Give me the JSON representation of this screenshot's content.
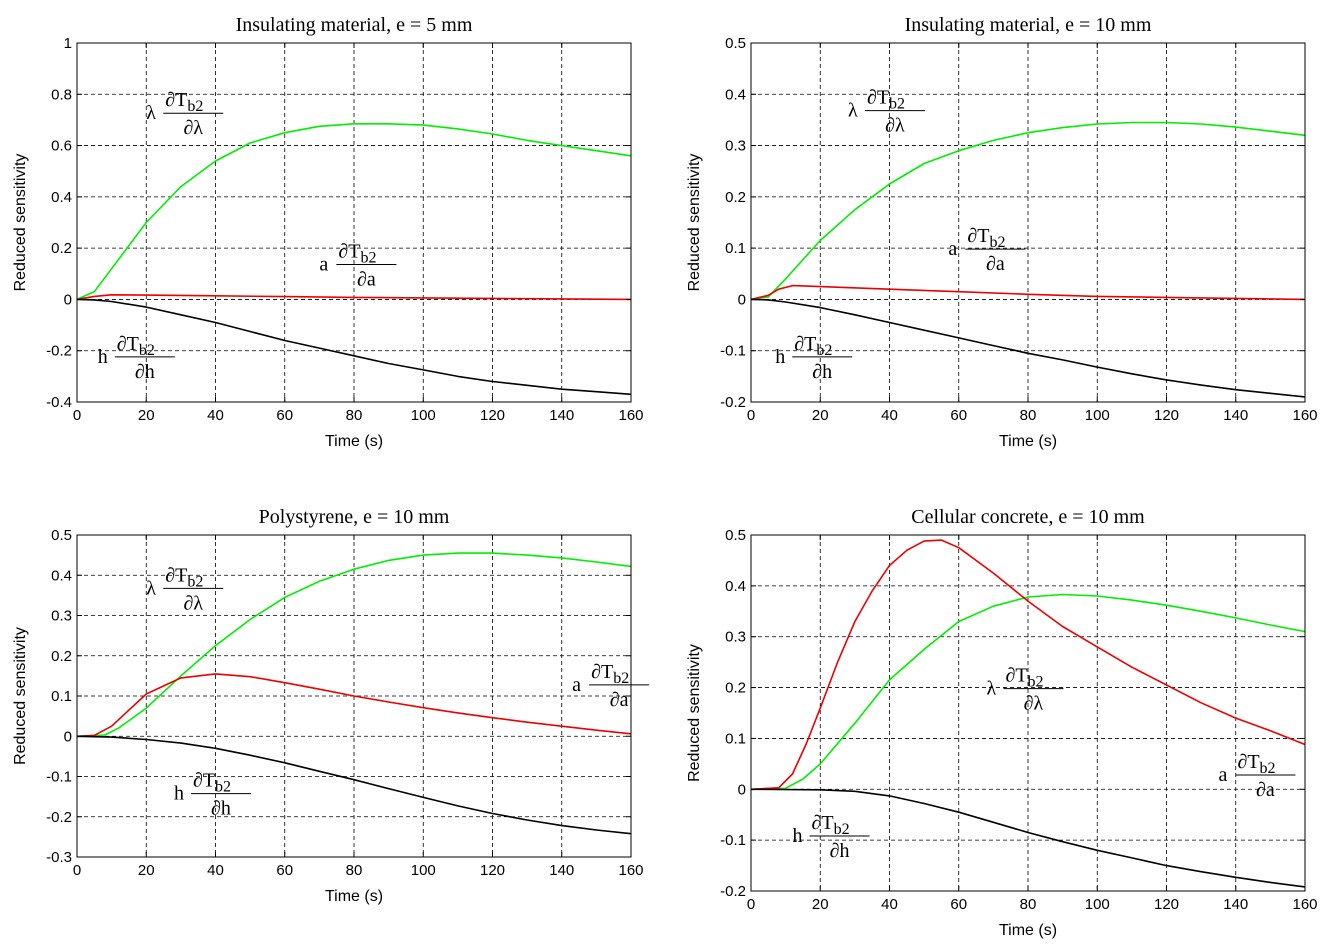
{
  "chart_data": [
    {
      "type": "line",
      "title": "Insulating material, e = 5 mm",
      "xlabel": "Time (s)",
      "ylabel": "Reduced sensitivity",
      "xlim": [
        0,
        160
      ],
      "ylim": [
        -0.4,
        1
      ],
      "xticks": [
        0,
        20,
        40,
        60,
        80,
        100,
        120,
        140,
        160
      ],
      "xtick_labels": [
        "0",
        "20",
        "40",
        "60",
        "80",
        "100",
        "120",
        "140",
        "160"
      ],
      "yticks": [
        -0.4,
        -0.2,
        0,
        0.2,
        0.4,
        0.6,
        0.8,
        1
      ],
      "ytick_labels": [
        "-0.4",
        "-0.2",
        "0",
        "0.2",
        "0.4",
        "0.6",
        "0.8",
        "1"
      ],
      "grid": true,
      "series": [
        {
          "color": "#00ee00",
          "x": [
            0,
            5,
            10,
            20,
            30,
            40,
            50,
            60,
            70,
            80,
            90,
            100,
            110,
            120,
            130,
            140,
            150,
            160
          ],
          "y": [
            0,
            0.03,
            0.12,
            0.3,
            0.44,
            0.54,
            0.61,
            0.65,
            0.675,
            0.685,
            0.685,
            0.68,
            0.665,
            0.645,
            0.62,
            0.6,
            0.58,
            0.56
          ]
        },
        {
          "color": "#ee0000",
          "x": [
            0,
            5,
            10,
            20,
            40,
            60,
            80,
            100,
            120,
            140,
            160
          ],
          "y": [
            0,
            0.012,
            0.018,
            0.017,
            0.014,
            0.011,
            0.008,
            0.006,
            0.004,
            0.002,
            0
          ]
        },
        {
          "color": "#000000",
          "x": [
            0,
            5,
            10,
            20,
            30,
            40,
            50,
            60,
            70,
            80,
            90,
            100,
            110,
            120,
            130,
            140,
            150,
            160
          ],
          "y": [
            0,
            -0.002,
            -0.008,
            -0.03,
            -0.06,
            -0.09,
            -0.125,
            -0.16,
            -0.19,
            -0.22,
            -0.25,
            -0.275,
            -0.3,
            -0.32,
            -0.335,
            -0.35,
            -0.36,
            -0.37
          ]
        }
      ],
      "annotations": [
        {
          "coef": "λ",
          "num": "∂T",
          "sub": "b2",
          "den": "∂λ",
          "x": 20,
          "y": 0.73
        },
        {
          "coef": "a",
          "num": "∂T",
          "sub": "b2",
          "den": "∂a",
          "x": 70,
          "y": 0.14
        },
        {
          "coef": "h",
          "num": "∂T",
          "sub": "b2",
          "den": "∂h",
          "x": 6,
          "y": -0.22
        }
      ]
    },
    {
      "type": "line",
      "title": "Insulating material, e = 10 mm",
      "xlabel": "Time (s)",
      "ylabel": "Reduced sensitivity",
      "xlim": [
        0,
        160
      ],
      "ylim": [
        -0.2,
        0.5
      ],
      "xticks": [
        0,
        20,
        40,
        60,
        80,
        100,
        120,
        140,
        160
      ],
      "xtick_labels": [
        "0",
        "20",
        "40",
        "60",
        "80",
        "100",
        "120",
        "140",
        "160"
      ],
      "yticks": [
        -0.2,
        -0.1,
        0,
        0.1,
        0.2,
        0.3,
        0.4,
        0.5
      ],
      "ytick_labels": [
        "-0.2",
        "-0.1",
        "0",
        "0.1",
        "0.2",
        "0.3",
        "0.4",
        "0.5"
      ],
      "grid": true,
      "series": [
        {
          "color": "#00ee00",
          "x": [
            0,
            5,
            10,
            20,
            30,
            40,
            50,
            60,
            70,
            80,
            90,
            100,
            110,
            120,
            130,
            140,
            150,
            160
          ],
          "y": [
            0,
            0.005,
            0.04,
            0.115,
            0.175,
            0.225,
            0.265,
            0.29,
            0.31,
            0.325,
            0.335,
            0.342,
            0.345,
            0.345,
            0.342,
            0.336,
            0.328,
            0.32
          ]
        },
        {
          "color": "#ee0000",
          "x": [
            0,
            5,
            8,
            12,
            20,
            40,
            60,
            80,
            100,
            120,
            140,
            160
          ],
          "y": [
            0,
            0.008,
            0.02,
            0.027,
            0.025,
            0.02,
            0.015,
            0.01,
            0.006,
            0.004,
            0.002,
            0
          ]
        },
        {
          "color": "#000000",
          "x": [
            0,
            5,
            10,
            20,
            30,
            40,
            50,
            60,
            70,
            80,
            90,
            100,
            110,
            120,
            130,
            140,
            150,
            160
          ],
          "y": [
            0,
            -0.001,
            -0.005,
            -0.016,
            -0.03,
            -0.045,
            -0.06,
            -0.075,
            -0.09,
            -0.105,
            -0.118,
            -0.132,
            -0.145,
            -0.157,
            -0.167,
            -0.176,
            -0.183,
            -0.19
          ]
        }
      ],
      "annotations": [
        {
          "coef": "λ",
          "num": "∂T",
          "sub": "b2",
          "den": "∂λ",
          "x": 28,
          "y": 0.37
        },
        {
          "coef": "a",
          "num": "∂T",
          "sub": "b2",
          "den": "∂a",
          "x": 57,
          "y": 0.1
        },
        {
          "coef": "h",
          "num": "∂T",
          "sub": "b2",
          "den": "∂h",
          "x": 7,
          "y": -0.11
        }
      ]
    },
    {
      "type": "line",
      "title": "Polystyrene, e = 10 mm",
      "xlabel": "Time (s)",
      "ylabel": "Reduced sensitivity",
      "xlim": [
        0,
        160
      ],
      "ylim": [
        -0.3,
        0.5
      ],
      "xticks": [
        0,
        20,
        40,
        60,
        80,
        100,
        120,
        140,
        160
      ],
      "xtick_labels": [
        "0",
        "20",
        "40",
        "60",
        "80",
        "100",
        "120",
        "140",
        "160"
      ],
      "yticks": [
        -0.3,
        -0.2,
        -0.1,
        0,
        0.1,
        0.2,
        0.3,
        0.4,
        0.5
      ],
      "ytick_labels": [
        "-0.3",
        "-0.2",
        "-0.1",
        "0",
        "0.1",
        "0.2",
        "0.3",
        "0.4",
        "0.5"
      ],
      "grid": true,
      "series": [
        {
          "color": "#00ee00",
          "x": [
            0,
            8,
            12,
            20,
            30,
            40,
            50,
            60,
            70,
            80,
            90,
            100,
            110,
            120,
            130,
            140,
            150,
            160
          ],
          "y": [
            0,
            0.003,
            0.02,
            0.07,
            0.15,
            0.225,
            0.29,
            0.345,
            0.385,
            0.415,
            0.437,
            0.45,
            0.455,
            0.455,
            0.45,
            0.443,
            0.433,
            0.422
          ]
        },
        {
          "color": "#ee0000",
          "x": [
            0,
            5,
            10,
            15,
            20,
            30,
            40,
            50,
            60,
            70,
            80,
            90,
            100,
            110,
            120,
            130,
            140,
            150,
            160
          ],
          "y": [
            0,
            0.002,
            0.025,
            0.065,
            0.105,
            0.145,
            0.155,
            0.148,
            0.133,
            0.117,
            0.1,
            0.085,
            0.071,
            0.058,
            0.046,
            0.035,
            0.025,
            0.015,
            0.006
          ]
        },
        {
          "color": "#000000",
          "x": [
            0,
            10,
            20,
            30,
            40,
            50,
            60,
            70,
            80,
            90,
            100,
            110,
            120,
            130,
            140,
            150,
            160
          ],
          "y": [
            0,
            -0.002,
            -0.008,
            -0.017,
            -0.03,
            -0.047,
            -0.066,
            -0.087,
            -0.108,
            -0.13,
            -0.152,
            -0.173,
            -0.192,
            -0.208,
            -0.222,
            -0.233,
            -0.242
          ]
        }
      ],
      "annotations": [
        {
          "coef": "λ",
          "num": "∂T",
          "sub": "b2",
          "den": "∂λ",
          "x": 20,
          "y": 0.37
        },
        {
          "coef": "a",
          "num": "∂T",
          "sub": "b2",
          "den": "∂a",
          "x": 143,
          "y": 0.13
        },
        {
          "coef": "h",
          "num": "∂T",
          "sub": "b2",
          "den": "∂h",
          "x": 28,
          "y": -0.14
        }
      ]
    },
    {
      "type": "line",
      "title": "Cellular concrete, e = 10 mm",
      "xlabel": "Time (s)",
      "ylabel": "Reduced sensitivity",
      "xlim": [
        0,
        160
      ],
      "ylim": [
        -0.2,
        0.5
      ],
      "xticks": [
        0,
        20,
        40,
        60,
        80,
        100,
        120,
        140,
        160
      ],
      "xtick_labels": [
        "0",
        "20",
        "40",
        "60",
        "80",
        "100",
        "120",
        "140",
        "160"
      ],
      "yticks": [
        -0.2,
        -0.1,
        0,
        0.1,
        0.2,
        0.3,
        0.4,
        0.5
      ],
      "ytick_labels": [
        "-0.2",
        "-0.1",
        "0",
        "0.1",
        "0.2",
        "0.3",
        "0.4",
        "0.5"
      ],
      "grid": true,
      "series": [
        {
          "color": "#00ee00",
          "x": [
            0,
            10,
            15,
            20,
            30,
            40,
            50,
            60,
            70,
            80,
            90,
            100,
            110,
            120,
            130,
            140,
            150,
            160
          ],
          "y": [
            0,
            0.002,
            0.02,
            0.05,
            0.13,
            0.215,
            0.275,
            0.33,
            0.36,
            0.378,
            0.383,
            0.38,
            0.372,
            0.362,
            0.35,
            0.337,
            0.323,
            0.31
          ]
        },
        {
          "color": "#ee0000",
          "x": [
            0,
            8,
            12,
            16,
            20,
            25,
            30,
            35,
            40,
            45,
            50,
            55,
            60,
            70,
            80,
            90,
            100,
            110,
            120,
            130,
            140,
            150,
            160
          ],
          "y": [
            0,
            0.003,
            0.03,
            0.09,
            0.16,
            0.25,
            0.33,
            0.39,
            0.44,
            0.47,
            0.488,
            0.49,
            0.475,
            0.425,
            0.37,
            0.32,
            0.28,
            0.24,
            0.205,
            0.17,
            0.14,
            0.115,
            0.088
          ]
        },
        {
          "color": "#000000",
          "x": [
            0,
            20,
            30,
            40,
            50,
            60,
            70,
            80,
            90,
            100,
            110,
            120,
            130,
            140,
            150,
            160
          ],
          "y": [
            0,
            -0.001,
            -0.004,
            -0.013,
            -0.028,
            -0.045,
            -0.065,
            -0.085,
            -0.103,
            -0.12,
            -0.135,
            -0.15,
            -0.162,
            -0.173,
            -0.183,
            -0.192
          ]
        }
      ],
      "annotations": [
        {
          "coef": "λ",
          "num": "∂T",
          "sub": "b2",
          "den": "∂λ",
          "x": 68,
          "y": 0.2
        },
        {
          "coef": "a",
          "num": "∂T",
          "sub": "b2",
          "den": "∂a",
          "x": 135,
          "y": 0.03
        },
        {
          "coef": "h",
          "num": "∂T",
          "sub": "b2",
          "den": "∂h",
          "x": 12,
          "y": -0.09
        }
      ]
    }
  ]
}
